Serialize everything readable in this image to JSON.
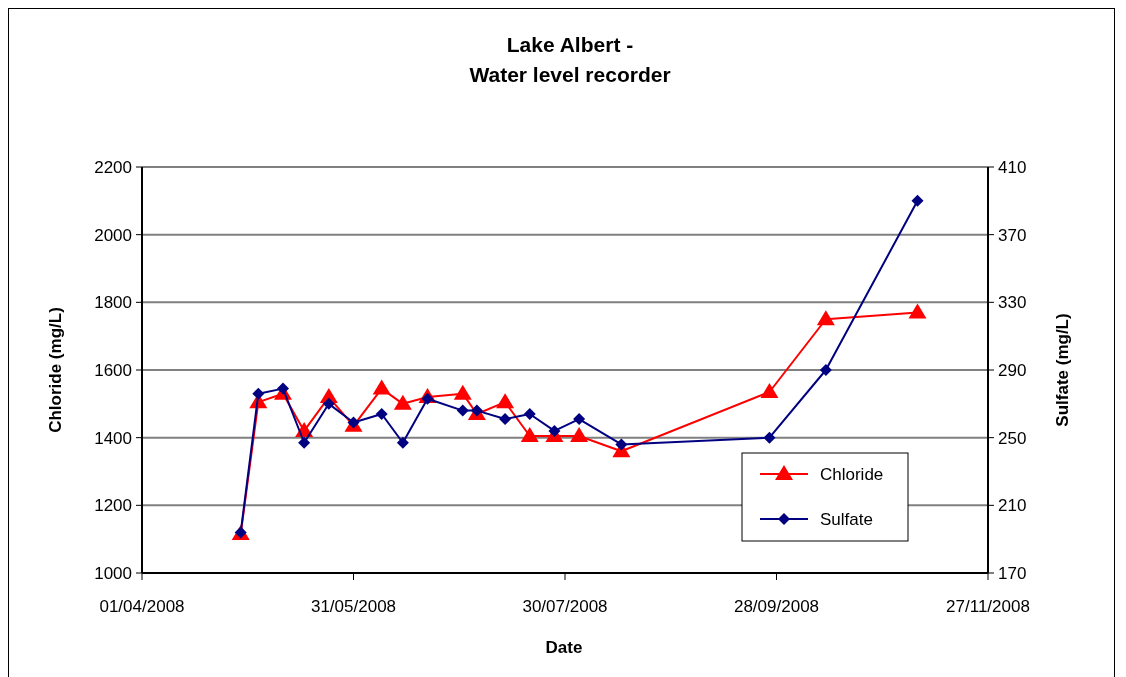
{
  "chart_data": {
    "type": "line",
    "title": "Lake Albert -\nWater level recorder",
    "xlabel": "Date",
    "ylabel": "Chloride (mg/L)",
    "y2label": "Sulfate (mg/L)",
    "x": [
      "2008-04-29",
      "2008-05-04",
      "2008-05-11",
      "2008-05-17",
      "2008-05-24",
      "2008-05-31",
      "2008-06-08",
      "2008-06-14",
      "2008-06-21",
      "2008-07-01",
      "2008-07-05",
      "2008-07-13",
      "2008-07-20",
      "2008-07-27",
      "2008-08-03",
      "2008-08-15",
      "2008-09-26",
      "2008-10-12",
      "2008-11-07"
    ],
    "series": [
      {
        "name": "Chloride",
        "color": "#ff0000",
        "marker": "triangle",
        "values": [
          1115,
          1505,
          1530,
          1420,
          1520,
          1435,
          1545,
          1500,
          1520,
          1530,
          1470,
          1505,
          1405,
          1405,
          1405,
          1360,
          1535,
          1750,
          1770
        ]
      },
      {
        "name": "Sulfate",
        "color": "#000080",
        "marker": "diamond",
        "axis": "y2",
        "values": [
          194,
          276,
          279,
          247,
          270,
          259,
          264,
          247,
          273,
          266,
          266,
          261,
          264,
          254,
          261,
          246,
          250,
          290,
          390
        ]
      }
    ],
    "xlim": [
      "2008-04-01",
      "2008-11-27"
    ],
    "xticks": [
      {
        "value": "2008-04-01",
        "label": "01/04/2008"
      },
      {
        "value": "2008-05-31",
        "label": "31/05/2008"
      },
      {
        "value": "2008-07-30",
        "label": "30/07/2008"
      },
      {
        "value": "2008-09-28",
        "label": "28/09/2008"
      },
      {
        "value": "2008-11-27",
        "label": "27/11/2008"
      }
    ],
    "ylim": [
      1000,
      2200
    ],
    "yticks": [
      1000,
      1200,
      1400,
      1600,
      1800,
      2000,
      2200
    ],
    "y2lim": [
      170,
      410
    ],
    "y2ticks": [
      170,
      210,
      250,
      290,
      330,
      370,
      410
    ],
    "grid": "y",
    "legend": "bottom right",
    "line_style": "solid"
  }
}
